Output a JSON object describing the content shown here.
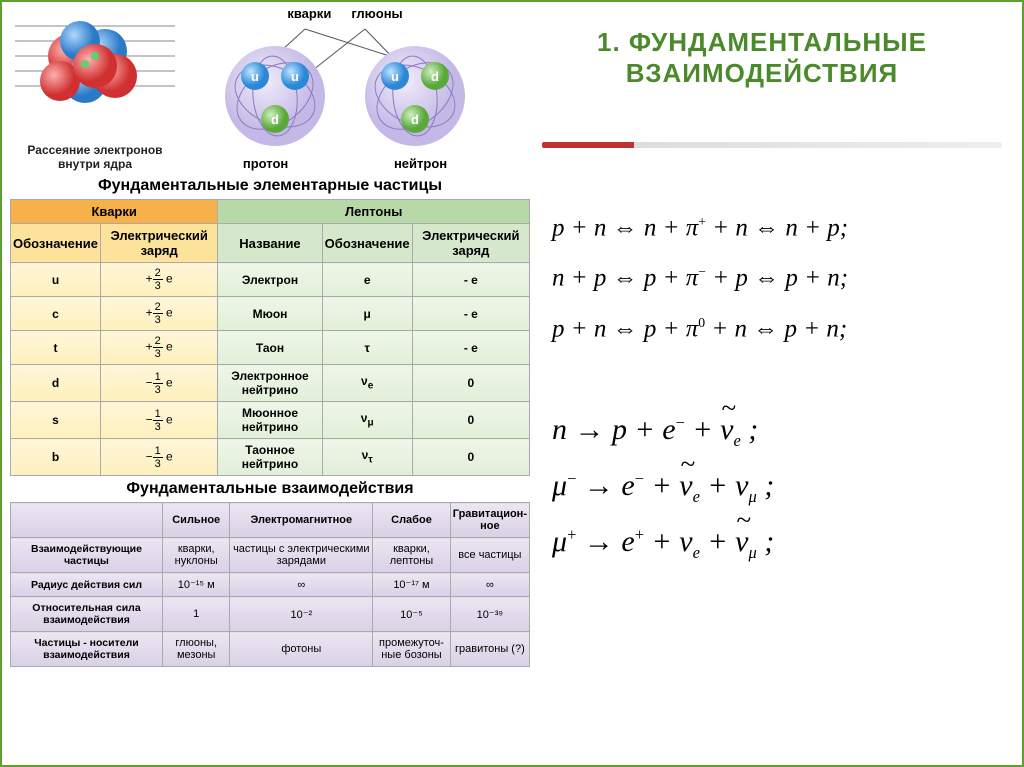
{
  "title": {
    "line1": "1. ФУНДАМЕНТАЛЬНЫЕ",
    "line2": "ВЗАИМОДЕЙСТВИЯ",
    "color": "#4a8a2a"
  },
  "diagrams": {
    "nucleus_caption": "Рассеяние электронов внутри ядра",
    "pn_top_labels": [
      "кварки",
      "глюоны"
    ],
    "pn_bottom_labels": [
      "протон",
      "нейтрон"
    ],
    "quark_colors": {
      "u": "#4fa8e8",
      "d": "#8fd07a",
      "halo": "#d0c7e8",
      "stroke": "#7a6fb0"
    },
    "nucleus_colors": {
      "p": "#e05a5a",
      "n": "#5aa8e0"
    }
  },
  "particles_title": "Фундаментальные элементарные частицы",
  "particles": {
    "group_headers": [
      "Кварки",
      "Лептоны"
    ],
    "sub_headers_q": [
      "Обозначение",
      "Электрический заряд"
    ],
    "sub_headers_l": [
      "Название",
      "Обозначение",
      "Электрический заряд"
    ],
    "rows": [
      {
        "q": "u",
        "qc_sign": "+",
        "qc_num": "2",
        "qc_den": "3",
        "l_name": "Электрон",
        "l_sym": "e",
        "l_charge": "- e"
      },
      {
        "q": "c",
        "qc_sign": "+",
        "qc_num": "2",
        "qc_den": "3",
        "l_name": "Мюон",
        "l_sym": "μ",
        "l_charge": "- e"
      },
      {
        "q": "t",
        "qc_sign": "+",
        "qc_num": "2",
        "qc_den": "3",
        "l_name": "Таон",
        "l_sym": "τ",
        "l_charge": "- e"
      },
      {
        "q": "d",
        "qc_sign": "−",
        "qc_num": "1",
        "qc_den": "3",
        "l_name": "Электронное нейтрино",
        "l_sym": "νe",
        "l_charge": "0"
      },
      {
        "q": "s",
        "qc_sign": "−",
        "qc_num": "1",
        "qc_den": "3",
        "l_name": "Мюонное нейтрино",
        "l_sym": "νμ",
        "l_charge": "0"
      },
      {
        "q": "b",
        "qc_sign": "−",
        "qc_num": "1",
        "qc_den": "3",
        "l_name": "Таонное нейтрино",
        "l_sym": "ντ",
        "l_charge": "0"
      }
    ]
  },
  "interactions_title": "Фундаментальные взаимодействия",
  "interactions": {
    "col_headers": [
      "",
      "Сильное",
      "Электромагнитное",
      "Слабое",
      "Гравитацион-\nное"
    ],
    "rows": [
      {
        "h": "Взаимодействующие частицы",
        "c": [
          "кварки, нуклоны",
          "частицы с электрическими зарядами",
          "кварки, лептоны",
          "все частицы"
        ]
      },
      {
        "h": "Радиус действия сил",
        "c": [
          "10⁻¹⁵ м",
          "∞",
          "10⁻¹⁷ м",
          "∞"
        ]
      },
      {
        "h": "Относительная сила взаимодействия",
        "c": [
          "1",
          "10⁻²",
          "10⁻⁵",
          "10⁻³⁹"
        ]
      },
      {
        "h": "Частицы - носители взаимодействия",
        "c": [
          "глюоны, мезоны",
          "фотоны",
          "промежуточ-\nные бозоны",
          "гравитоны (?)"
        ]
      }
    ]
  },
  "equations_html": [
    "p + n ⇔ n + π<span class='sup'>+</span> + n ⇔ n + p;",
    "n + p ⇔ p + π<span class='sup'>−</span> + p ⇔ p + n;",
    "p + n ⇔ p + π<span class='sup'>0</span> + n ⇔ p + n;"
  ],
  "decays_html": [
    "n → p + e<span class='sup'>−</span> + <span class='tilde'>ν</span><span class='sub'>e</span> ;",
    "μ<span class='sup'>−</span> → e<span class='sup'>−</span> + <span class='tilde'>ν</span><span class='sub'>e</span> + ν<span class='sub'>μ</span> ;",
    "μ<span class='sup'>+</span> → e<span class='sup'>+</span> + ν<span class='sub'>e</span> + <span class='tilde'>ν</span><span class='sub'>μ</span> ;"
  ],
  "colors": {
    "title": "#4a8a2a",
    "quark_bg": "#fce29a",
    "lepton_bg": "#d5e8cb",
    "inter_bg": "#d9d0e6"
  }
}
